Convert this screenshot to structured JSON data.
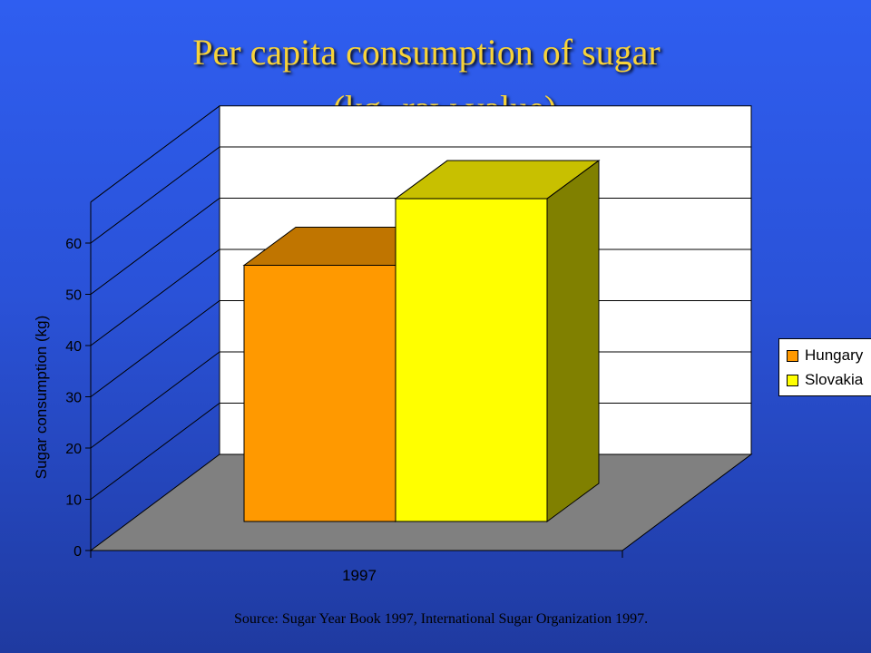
{
  "slide": {
    "title_line1": "Per capita consumption of sugar",
    "title_line2": "(kg- raw value)",
    "source": "Source: Sugar Year Book 1997, International Sugar Organization 1997."
  },
  "chart_data": {
    "type": "bar",
    "three_d": true,
    "categories": [
      "1997"
    ],
    "series": [
      {
        "name": "Hungary",
        "values": [
          50
        ],
        "color": "#ff9900",
        "top_color": "#c07500",
        "side_color": "#a06000"
      },
      {
        "name": "Slovakia",
        "values": [
          63
        ],
        "color": "#ffff00",
        "top_color": "#c8c000",
        "side_color": "#808000"
      }
    ],
    "ylabel": "Sugar consumption (kg)",
    "xlabel": "",
    "ylim": [
      0,
      60
    ],
    "yticks": [
      "0",
      "10",
      "20",
      "30",
      "40",
      "50",
      "60"
    ],
    "grid": true,
    "wall_color": "#ffffff",
    "floor_color": "#808080",
    "legend_position": "right"
  }
}
